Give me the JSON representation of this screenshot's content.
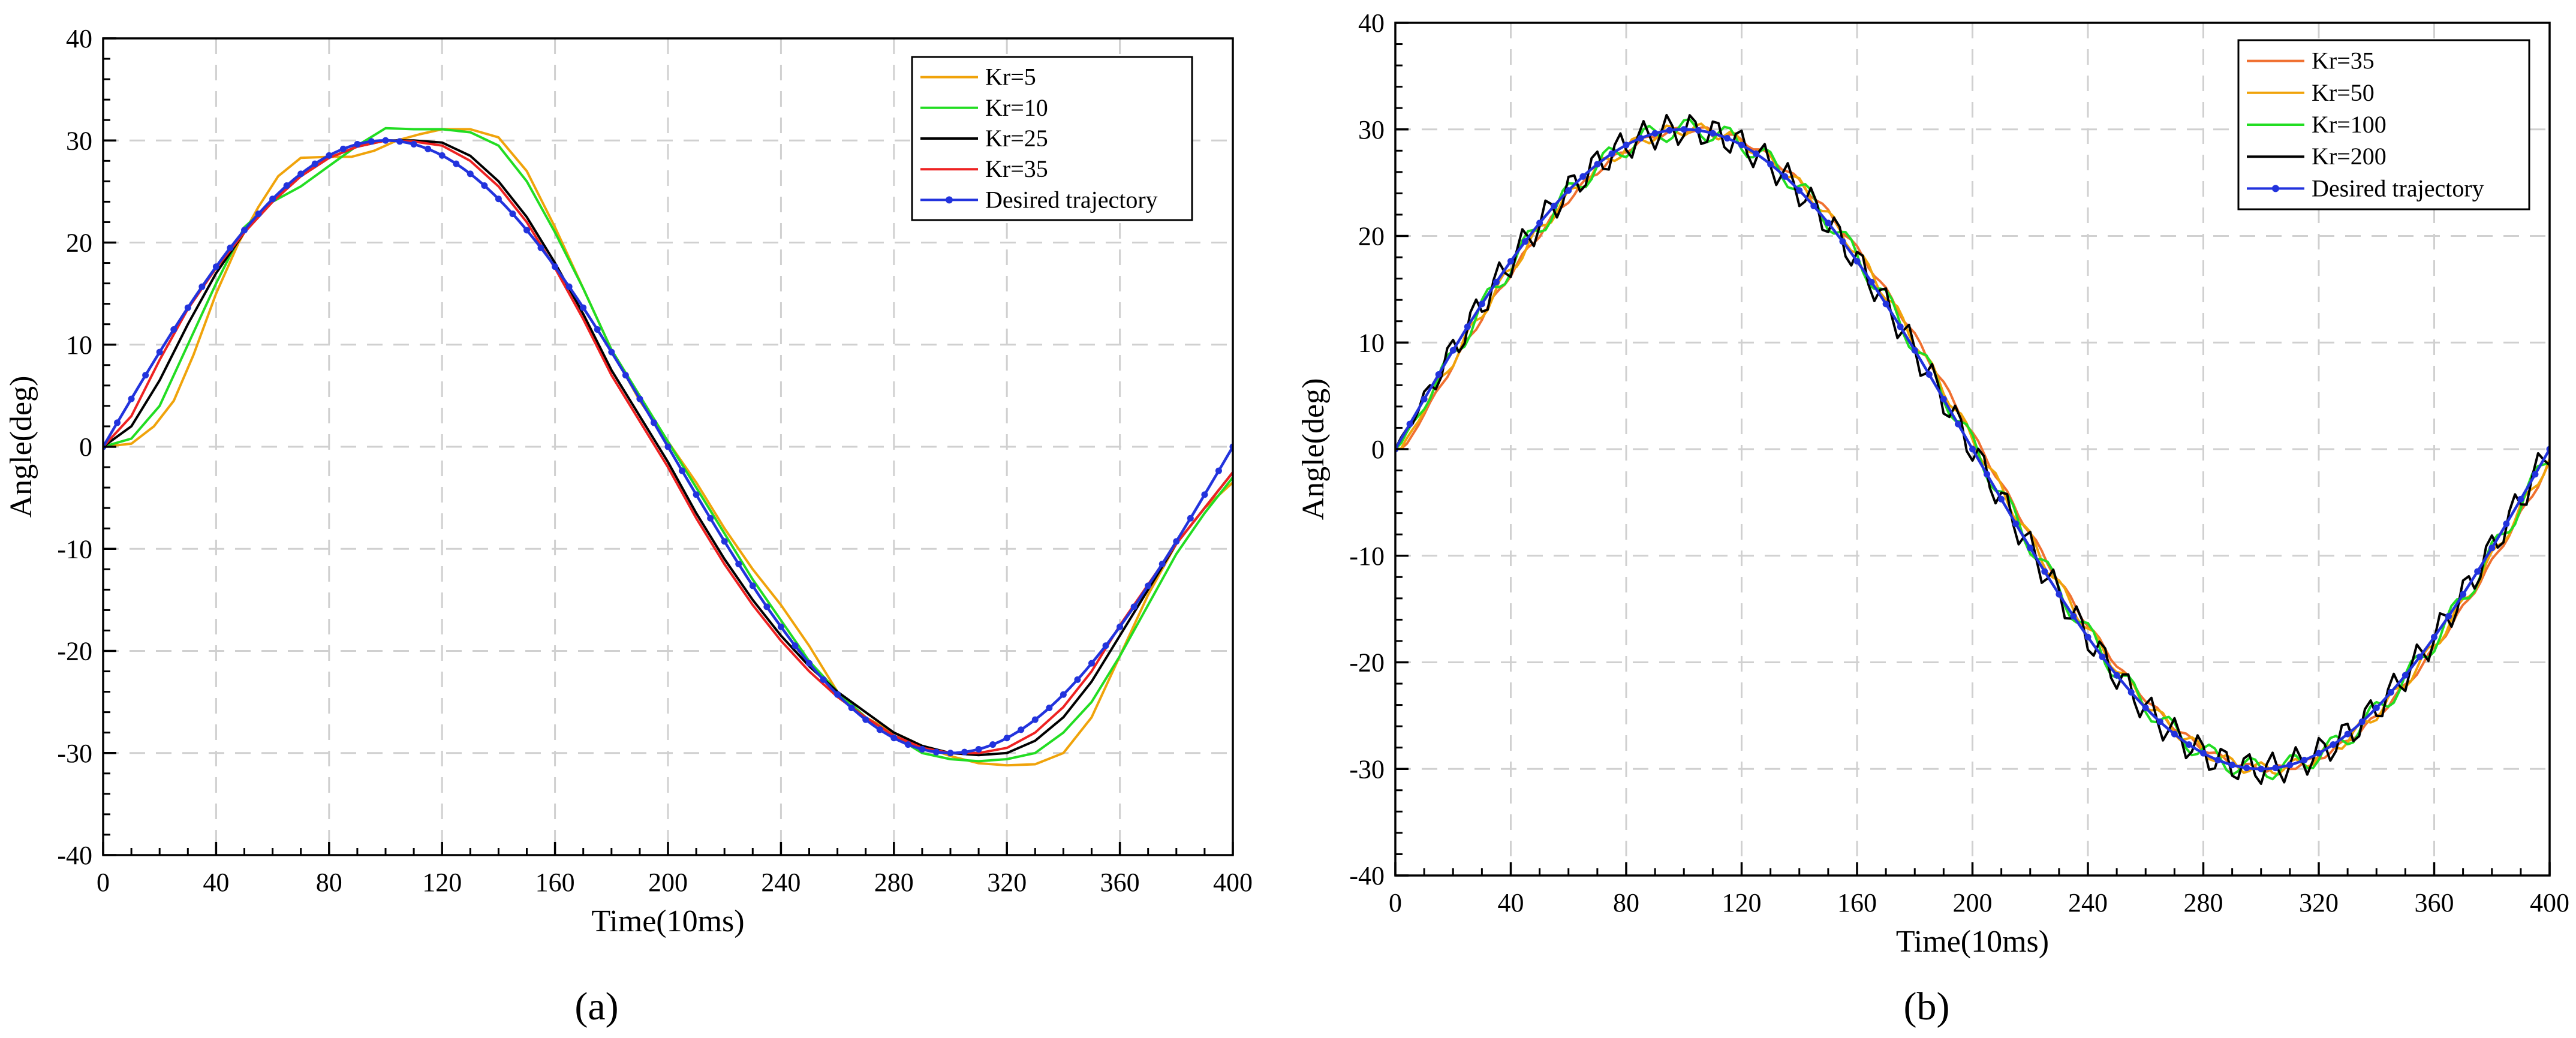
{
  "charts": [
    {
      "type": "line",
      "panel_label": "(a)",
      "xlabel": "Time(10ms)",
      "ylabel": "Angle(deg)",
      "xlim": [
        0,
        400
      ],
      "ylim": [
        -40,
        40
      ],
      "xticks": [
        0,
        40,
        80,
        120,
        160,
        200,
        240,
        280,
        320,
        360,
        400
      ],
      "yticks": [
        -40,
        -30,
        -20,
        -10,
        0,
        10,
        20,
        30,
        40
      ],
      "legend_position": "top-right",
      "grid": true,
      "series": [
        {
          "name": "Kr=5",
          "color": "#f0a30a",
          "marker": "none",
          "points": [
            [
              0,
              0
            ],
            [
              10,
              0.3
            ],
            [
              18,
              2
            ],
            [
              25,
              4.5
            ],
            [
              32,
              9
            ],
            [
              40,
              15
            ],
            [
              48,
              20
            ],
            [
              55,
              23.5
            ],
            [
              62,
              26.5
            ],
            [
              70,
              28.3
            ],
            [
              80,
              28.4
            ],
            [
              88,
              28.4
            ],
            [
              96,
              29
            ],
            [
              104,
              30
            ],
            [
              112,
              30.6
            ],
            [
              120,
              31.1
            ],
            [
              130,
              31.1
            ],
            [
              140,
              30.3
            ],
            [
              150,
              27
            ],
            [
              160,
              21.5
            ],
            [
              170,
              15.5
            ],
            [
              180,
              9.5
            ],
            [
              190,
              4.5
            ],
            [
              200,
              0.5
            ],
            [
              210,
              -3.5
            ],
            [
              220,
              -8
            ],
            [
              230,
              -12
            ],
            [
              240,
              -15.5
            ],
            [
              250,
              -19.5
            ],
            [
              260,
              -24
            ],
            [
              270,
              -26.5
            ],
            [
              280,
              -28
            ],
            [
              290,
              -29.3
            ],
            [
              300,
              -30.3
            ],
            [
              310,
              -31
            ],
            [
              320,
              -31.2
            ],
            [
              330,
              -31.1
            ],
            [
              340,
              -30
            ],
            [
              350,
              -26.5
            ],
            [
              360,
              -20.5
            ],
            [
              370,
              -14.5
            ],
            [
              380,
              -9.5
            ],
            [
              390,
              -6
            ],
            [
              400,
              -3.5
            ]
          ]
        },
        {
          "name": "Kr=10",
          "color": "#22dd22",
          "marker": "none",
          "points": [
            [
              0,
              0
            ],
            [
              10,
              0.8
            ],
            [
              20,
              4
            ],
            [
              30,
              10
            ],
            [
              40,
              16
            ],
            [
              50,
              21.5
            ],
            [
              60,
              24
            ],
            [
              70,
              25.5
            ],
            [
              80,
              27.5
            ],
            [
              90,
              29.5
            ],
            [
              100,
              31.2
            ],
            [
              110,
              31.1
            ],
            [
              120,
              31.1
            ],
            [
              130,
              30.8
            ],
            [
              140,
              29.5
            ],
            [
              150,
              26
            ],
            [
              160,
              21
            ],
            [
              170,
              15.5
            ],
            [
              180,
              9.5
            ],
            [
              190,
              5
            ],
            [
              200,
              0.5
            ],
            [
              210,
              -4
            ],
            [
              220,
              -8.5
            ],
            [
              230,
              -13
            ],
            [
              240,
              -17
            ],
            [
              250,
              -21
            ],
            [
              260,
              -24
            ],
            [
              270,
              -26.5
            ],
            [
              280,
              -28.3
            ],
            [
              290,
              -30
            ],
            [
              300,
              -30.6
            ],
            [
              310,
              -30.8
            ],
            [
              320,
              -30.6
            ],
            [
              330,
              -30
            ],
            [
              340,
              -28
            ],
            [
              350,
              -25
            ],
            [
              360,
              -20.5
            ],
            [
              370,
              -15.5
            ],
            [
              380,
              -10.5
            ],
            [
              390,
              -6.5
            ],
            [
              400,
              -3
            ]
          ]
        },
        {
          "name": "Kr=25",
          "color": "#000000",
          "marker": "none",
          "points": [
            [
              0,
              0
            ],
            [
              10,
              2
            ],
            [
              20,
              6.5
            ],
            [
              30,
              12
            ],
            [
              40,
              17
            ],
            [
              50,
              21
            ],
            [
              60,
              24
            ],
            [
              70,
              26.5
            ],
            [
              80,
              28.3
            ],
            [
              90,
              29.4
            ],
            [
              100,
              30
            ],
            [
              110,
              30
            ],
            [
              120,
              29.8
            ],
            [
              130,
              28.5
            ],
            [
              140,
              26
            ],
            [
              150,
              22.5
            ],
            [
              160,
              18
            ],
            [
              170,
              13
            ],
            [
              180,
              7.5
            ],
            [
              190,
              3
            ],
            [
              200,
              -1.5
            ],
            [
              210,
              -6.5
            ],
            [
              220,
              -11
            ],
            [
              230,
              -15
            ],
            [
              240,
              -18.5
            ],
            [
              250,
              -21.5
            ],
            [
              260,
              -24
            ],
            [
              270,
              -26
            ],
            [
              280,
              -28
            ],
            [
              290,
              -29.3
            ],
            [
              300,
              -30
            ],
            [
              310,
              -30.2
            ],
            [
              320,
              -30
            ],
            [
              330,
              -28.8
            ],
            [
              340,
              -26.5
            ],
            [
              350,
              -23
            ],
            [
              360,
              -18.5
            ],
            [
              370,
              -14
            ],
            [
              380,
              -9.5
            ],
            [
              390,
              -6
            ],
            [
              400,
              -2.5
            ]
          ]
        },
        {
          "name": "Kr=35",
          "color": "#ee2222",
          "marker": "none",
          "points": [
            [
              0,
              0
            ],
            [
              10,
              3
            ],
            [
              20,
              8.5
            ],
            [
              30,
              13.5
            ],
            [
              40,
              17.5
            ],
            [
              50,
              21
            ],
            [
              60,
              24
            ],
            [
              70,
              26.5
            ],
            [
              80,
              28.3
            ],
            [
              90,
              29.4
            ],
            [
              100,
              30
            ],
            [
              110,
              29.9
            ],
            [
              120,
              29.5
            ],
            [
              130,
              28
            ],
            [
              140,
              25.5
            ],
            [
              150,
              22
            ],
            [
              160,
              17.5
            ],
            [
              170,
              12.5
            ],
            [
              180,
              7
            ],
            [
              190,
              2.5
            ],
            [
              200,
              -2
            ],
            [
              210,
              -7
            ],
            [
              220,
              -11.5
            ],
            [
              230,
              -15.5
            ],
            [
              240,
              -19
            ],
            [
              250,
              -22
            ],
            [
              260,
              -24.5
            ],
            [
              270,
              -26.5
            ],
            [
              280,
              -28.3
            ],
            [
              290,
              -29.5
            ],
            [
              300,
              -30
            ],
            [
              310,
              -30
            ],
            [
              320,
              -29.5
            ],
            [
              330,
              -28
            ],
            [
              340,
              -25.5
            ],
            [
              350,
              -22
            ],
            [
              360,
              -17.5
            ],
            [
              370,
              -13.5
            ],
            [
              380,
              -9.5
            ],
            [
              390,
              -6
            ],
            [
              400,
              -2.5
            ]
          ]
        },
        {
          "name": "Desired trajectory",
          "color": "#2233dd",
          "marker": "dot",
          "function": "sine",
          "amplitude": 30,
          "period": 400
        }
      ]
    },
    {
      "type": "line",
      "panel_label": "(b)",
      "xlabel": "Time(10ms)",
      "ylabel": "Angle(deg)",
      "xlim": [
        0,
        400
      ],
      "ylim": [
        -40,
        40
      ],
      "xticks": [
        0,
        40,
        80,
        120,
        160,
        200,
        240,
        280,
        320,
        360,
        400
      ],
      "yticks": [
        -40,
        -30,
        -20,
        -10,
        0,
        10,
        20,
        30,
        40
      ],
      "legend_position": "top-right",
      "grid": true,
      "series": [
        {
          "name": "Kr=35",
          "color": "#f07030",
          "marker": "none",
          "function": "sine",
          "amplitude": 30,
          "period": 400,
          "lag": 3,
          "wobble": 0.3,
          "wobble_freq": 0.6
        },
        {
          "name": "Kr=50",
          "color": "#f0a30a",
          "marker": "none",
          "function": "sine",
          "amplitude": 30,
          "period": 400,
          "lag": 2,
          "wobble": 0.6,
          "wobble_freq": 0.55
        },
        {
          "name": "Kr=100",
          "color": "#22dd22",
          "marker": "none",
          "function": "sine",
          "amplitude": 30,
          "period": 400,
          "lag": 1,
          "wobble": 1.0,
          "wobble_freq": 0.45
        },
        {
          "name": "Kr=200",
          "color": "#000000",
          "marker": "none",
          "function": "sine",
          "amplitude": 30,
          "period": 400,
          "lag": 0,
          "wobble": 1.5,
          "wobble_freq": 0.75
        },
        {
          "name": "Desired trajectory",
          "color": "#2233dd",
          "marker": "dot",
          "function": "sine",
          "amplitude": 30,
          "period": 400
        }
      ]
    }
  ]
}
